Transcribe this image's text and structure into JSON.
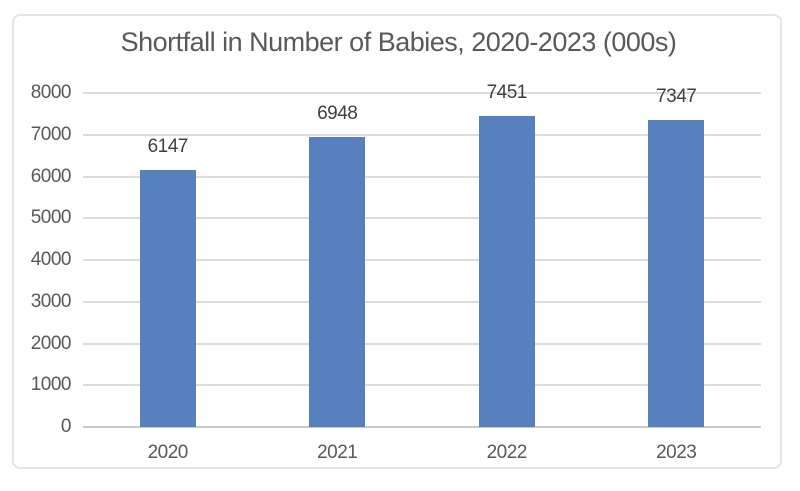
{
  "chart_data": {
    "type": "bar",
    "title": "Shortfall in Number of Babies, 2020-2023 (000s)",
    "categories": [
      "2020",
      "2021",
      "2022",
      "2023"
    ],
    "values": [
      6147,
      6948,
      7451,
      7347
    ],
    "data_labels": [
      "6147",
      "6948",
      "7451",
      "7347"
    ],
    "yticks": [
      "0",
      "1000",
      "2000",
      "3000",
      "4000",
      "5000",
      "6000",
      "7000",
      "8000"
    ],
    "ytick_values": [
      0,
      1000,
      2000,
      3000,
      4000,
      5000,
      6000,
      7000,
      8000
    ],
    "ylim": [
      0,
      8000
    ],
    "xlabel": "",
    "ylabel": "",
    "grid": true,
    "legend": "none",
    "colors": {
      "bar": "#5681be",
      "gridline": "#dcdcdc",
      "zero_line": "#c9c9c9",
      "title_text": "#595959",
      "tick_text": "#595959",
      "value_label_text": "#3f3f3f",
      "card_border": "#e4e4e4",
      "background": "#ffffff"
    }
  }
}
